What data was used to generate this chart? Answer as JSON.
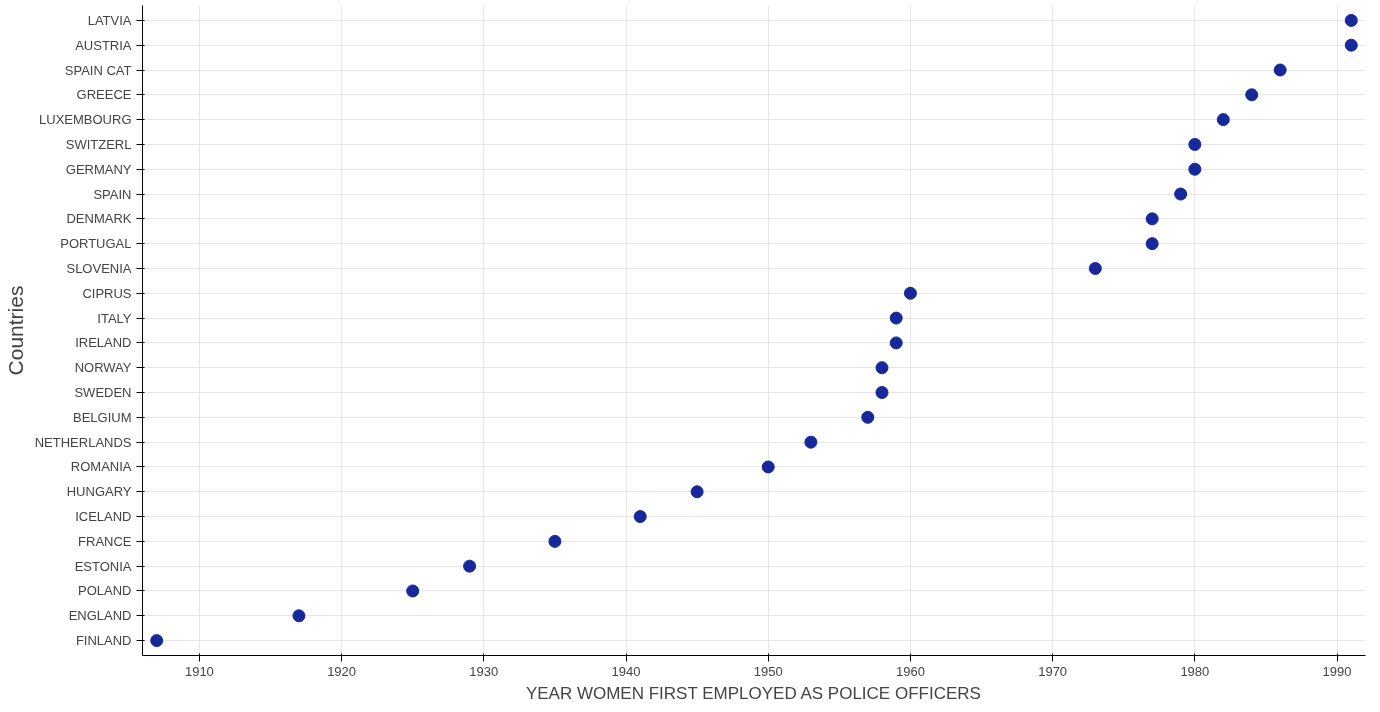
{
  "chart_data": {
    "type": "scatter",
    "orientation": "horizontal",
    "xlabel": "YEAR WOMEN FIRST EMPLOYED AS POLICE OFFICERS",
    "ylabel": "Countries",
    "categories": [
      "LATVIA",
      "AUSTRIA",
      "SPAIN CAT",
      "GREECE",
      "LUXEMBOURG",
      "SWITZERL",
      "GERMANY",
      "SPAIN",
      "DENMARK",
      "PORTUGAL",
      "SLOVENIA",
      "CIPRUS",
      "ITALY",
      "IRELAND",
      "NORWAY",
      "SWEDEN",
      "BELGIUM",
      "NETHERLANDS",
      "ROMANIA",
      "HUNGARY",
      "ICELAND",
      "FRANCE",
      "ESTONIA",
      "POLAND",
      "ENGLAND",
      "FINLAND"
    ],
    "series": [
      {
        "color": "#16289a",
        "values": [
          1991,
          1991,
          1986,
          1984,
          1982,
          1980,
          1980,
          1979,
          1977,
          1977,
          1973,
          1960,
          1959,
          1959,
          1958,
          1958,
          1957,
          1953,
          1950,
          1945,
          1941,
          1935,
          1929,
          1925,
          1917,
          1907
        ]
      }
    ],
    "xlim": [
      1906,
      1992
    ],
    "xticks": [
      1910,
      1920,
      1930,
      1940,
      1950,
      1960,
      1970,
      1980,
      1990
    ],
    "grid": true,
    "marker": "circle"
  }
}
